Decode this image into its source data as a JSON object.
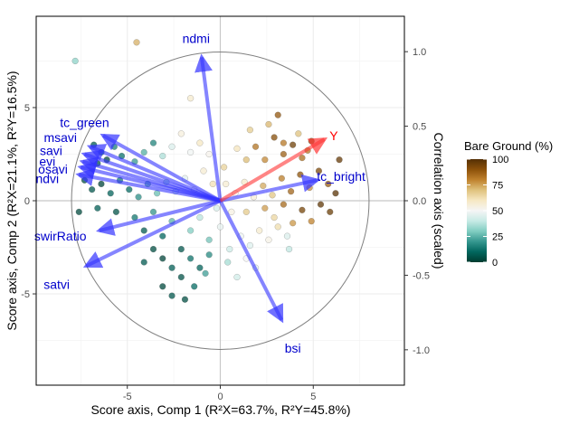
{
  "chart_data": {
    "type": "scatter",
    "subtype": "PLS biplot (scores with loading arrows and correlation circle)",
    "xlabel": "Score axis, Comp 1 (R²X=63.7%, R²Y=45.8%)",
    "ylabel": "Score axis, Comp 2 (R²X=21.1%, R²Y=16.5%)",
    "y2label": "Correlation axis (scaled)",
    "xlim": [
      -9.9,
      9.9
    ],
    "ylim": [
      -9.9,
      9.9
    ],
    "x_ticks": [
      -5,
      0,
      5
    ],
    "y_ticks": [
      -5,
      0,
      5
    ],
    "x_tick_labels": [
      "-5",
      "0",
      "5"
    ],
    "y_tick_labels": [
      "-5",
      "0",
      "5"
    ],
    "y2_ticks": [
      -1.0,
      -0.5,
      0.0,
      0.5,
      1.0
    ],
    "y2_tick_labels": [
      "-1.0",
      "-0.5",
      "0.0",
      "0.5",
      "1.0"
    ],
    "y2_scale": 8.0,
    "circle_radius": 8.0,
    "grid": true,
    "legend": {
      "title": "Bare Ground (%)",
      "position": "right",
      "ticks": [
        0,
        25,
        50,
        75,
        100
      ],
      "tick_labels": [
        "0",
        "25",
        "50",
        "75",
        "100"
      ],
      "colormap": [
        "#003c30",
        "#01665e",
        "#35978f",
        "#80cdc1",
        "#c7eae5",
        "#f5f5f5",
        "#f6e8c3",
        "#dfc27d",
        "#bf812d",
        "#8c510a",
        "#543005"
      ]
    },
    "arrow_color_x": "#3333ff",
    "arrow_color_y": "#ff3333",
    "loadings": [
      {
        "label": "ndmi",
        "x": -1.0,
        "y": 7.7,
        "label_x": -1.3,
        "label_y": 8.7,
        "type": "x"
      },
      {
        "label": "tc_green",
        "x": -6.3,
        "y": 3.5,
        "label_x": -7.3,
        "label_y": 4.2,
        "type": "x"
      },
      {
        "label": "msavi",
        "x": -7.0,
        "y": 2.9,
        "label_x": -8.6,
        "label_y": 3.4,
        "type": "x"
      },
      {
        "label": "savi",
        "x": -7.3,
        "y": 2.5,
        "label_x": -9.1,
        "label_y": 2.7,
        "type": "x"
      },
      {
        "label": "evi",
        "x": -7.4,
        "y": 2.1,
        "label_x": -9.3,
        "label_y": 2.1,
        "type": "x"
      },
      {
        "label": "osavi",
        "x": -7.5,
        "y": 1.8,
        "label_x": -9.0,
        "label_y": 1.7,
        "type": "x"
      },
      {
        "label": "ndvi",
        "x": -7.6,
        "y": 1.4,
        "label_x": -9.3,
        "label_y": 1.2,
        "type": "x"
      },
      {
        "label": "swirRatio",
        "x": -6.5,
        "y": -1.6,
        "label_x": -8.6,
        "label_y": -1.9,
        "type": "x"
      },
      {
        "label": "satvi",
        "x": -7.2,
        "y": -3.5,
        "label_x": -8.8,
        "label_y": -4.5,
        "type": "x"
      },
      {
        "label": "bsi",
        "x": 3.3,
        "y": -6.4,
        "label_x": 3.9,
        "label_y": -7.9,
        "type": "x"
      },
      {
        "label": "tc_bright",
        "x": 5.2,
        "y": 1.1,
        "label_x": 6.5,
        "label_y": 1.3,
        "type": "x"
      },
      {
        "label": "Y",
        "x": 5.6,
        "y": 3.3,
        "label_x": 6.1,
        "label_y": 3.5,
        "type": "y"
      }
    ],
    "points": [
      {
        "x": -7.8,
        "y": 7.5,
        "v": 32
      },
      {
        "x": -4.5,
        "y": 8.5,
        "v": 73
      },
      {
        "x": -1.6,
        "y": 5.5,
        "v": 58
      },
      {
        "x": 3.4,
        "y": 3.1,
        "v": 82
      },
      {
        "x": 4.2,
        "y": 3.6,
        "v": 70
      },
      {
        "x": -6.8,
        "y": 3.0,
        "v": 7
      },
      {
        "x": -6.4,
        "y": 2.6,
        "v": 10
      },
      {
        "x": -6.1,
        "y": 2.2,
        "v": 3
      },
      {
        "x": -6.6,
        "y": 2.0,
        "v": 5
      },
      {
        "x": -5.7,
        "y": 2.9,
        "v": 15
      },
      {
        "x": -5.3,
        "y": 2.4,
        "v": 12
      },
      {
        "x": -4.6,
        "y": 2.1,
        "v": 20
      },
      {
        "x": -4.1,
        "y": 2.6,
        "v": 24
      },
      {
        "x": -3.6,
        "y": 3.1,
        "v": 16
      },
      {
        "x": -3.1,
        "y": 2.4,
        "v": 36
      },
      {
        "x": -2.6,
        "y": 2.9,
        "v": 44
      },
      {
        "x": -2.1,
        "y": 3.6,
        "v": 55
      },
      {
        "x": -1.6,
        "y": 2.6,
        "v": 49
      },
      {
        "x": -1.1,
        "y": 3.1,
        "v": 60
      },
      {
        "x": -0.6,
        "y": 2.5,
        "v": 52
      },
      {
        "x": -7.3,
        "y": 1.1,
        "v": 4
      },
      {
        "x": -6.9,
        "y": 0.6,
        "v": 6
      },
      {
        "x": -6.4,
        "y": 0.9,
        "v": 2
      },
      {
        "x": -5.9,
        "y": 0.4,
        "v": 9
      },
      {
        "x": -5.4,
        "y": 1.1,
        "v": 14
      },
      {
        "x": -4.9,
        "y": 0.6,
        "v": 11
      },
      {
        "x": -4.4,
        "y": 0.2,
        "v": 18
      },
      {
        "x": -3.9,
        "y": 0.9,
        "v": 22
      },
      {
        "x": -3.4,
        "y": 0.4,
        "v": 27
      },
      {
        "x": -2.9,
        "y": 1.0,
        "v": 33
      },
      {
        "x": -2.4,
        "y": 0.5,
        "v": 40
      },
      {
        "x": -1.9,
        "y": 1.2,
        "v": 46
      },
      {
        "x": -1.4,
        "y": 0.6,
        "v": 51
      },
      {
        "x": -0.9,
        "y": 1.6,
        "v": 57
      },
      {
        "x": -0.4,
        "y": 0.9,
        "v": 62
      },
      {
        "x": 0.2,
        "y": 1.8,
        "v": 66
      },
      {
        "x": -7.6,
        "y": -0.6,
        "v": 3
      },
      {
        "x": -6.6,
        "y": -0.4,
        "v": 8
      },
      {
        "x": -5.6,
        "y": -0.6,
        "v": 5
      },
      {
        "x": -4.6,
        "y": -0.9,
        "v": 13
      },
      {
        "x": -4.1,
        "y": -1.6,
        "v": 7
      },
      {
        "x": -3.6,
        "y": -0.6,
        "v": 19
      },
      {
        "x": -3.1,
        "y": -1.9,
        "v": 10
      },
      {
        "x": -2.6,
        "y": -1.1,
        "v": 25
      },
      {
        "x": -2.1,
        "y": -2.6,
        "v": 6
      },
      {
        "x": -1.6,
        "y": -1.6,
        "v": 30
      },
      {
        "x": -1.1,
        "y": -0.9,
        "v": 38
      },
      {
        "x": -0.6,
        "y": -2.1,
        "v": 28
      },
      {
        "x": 0.0,
        "y": -1.4,
        "v": 47
      },
      {
        "x": 0.6,
        "y": -0.6,
        "v": 54
      },
      {
        "x": -3.6,
        "y": -2.6,
        "v": 4
      },
      {
        "x": -3.1,
        "y": -3.1,
        "v": 2
      },
      {
        "x": -2.6,
        "y": -3.6,
        "v": 8
      },
      {
        "x": -2.1,
        "y": -4.1,
        "v": 5
      },
      {
        "x": -1.6,
        "y": -3.1,
        "v": 12
      },
      {
        "x": -1.1,
        "y": -3.6,
        "v": 9
      },
      {
        "x": -0.6,
        "y": -2.9,
        "v": 17
      },
      {
        "x": -3.1,
        "y": -4.6,
        "v": 3
      },
      {
        "x": -2.6,
        "y": -5.1,
        "v": 6
      },
      {
        "x": -1.9,
        "y": -5.3,
        "v": 4
      },
      {
        "x": -4.1,
        "y": -3.3,
        "v": 7
      },
      {
        "x": -1.4,
        "y": -4.6,
        "v": 11
      },
      {
        "x": 0.5,
        "y": -2.6,
        "v": 41
      },
      {
        "x": 1.1,
        "y": -1.9,
        "v": 48
      },
      {
        "x": 1.6,
        "y": -2.4,
        "v": 45
      },
      {
        "x": 2.1,
        "y": -1.6,
        "v": 58
      },
      {
        "x": 2.6,
        "y": -2.1,
        "v": 53
      },
      {
        "x": 3.1,
        "y": -1.4,
        "v": 63
      },
      {
        "x": 3.6,
        "y": -1.9,
        "v": 44
      },
      {
        "x": 1.4,
        "y": -3.1,
        "v": 50
      },
      {
        "x": 0.9,
        "y": -4.1,
        "v": 42
      },
      {
        "x": 1.9,
        "y": -3.6,
        "v": 46
      },
      {
        "x": 0.8,
        "y": 0.4,
        "v": 52
      },
      {
        "x": 1.3,
        "y": 1.0,
        "v": 59
      },
      {
        "x": 1.8,
        "y": 0.2,
        "v": 56
      },
      {
        "x": 2.3,
        "y": 0.8,
        "v": 74
      },
      {
        "x": 2.8,
        "y": 0.3,
        "v": 69
      },
      {
        "x": 3.3,
        "y": 1.2,
        "v": 81
      },
      {
        "x": 3.8,
        "y": 0.5,
        "v": 86
      },
      {
        "x": 4.3,
        "y": 1.4,
        "v": 90
      },
      {
        "x": 4.8,
        "y": 0.7,
        "v": 78
      },
      {
        "x": 5.3,
        "y": 1.6,
        "v": 93
      },
      {
        "x": 5.8,
        "y": 0.9,
        "v": 88
      },
      {
        "x": 6.4,
        "y": 2.2,
        "v": 97
      },
      {
        "x": 1.4,
        "y": 2.2,
        "v": 71
      },
      {
        "x": 1.9,
        "y": 2.9,
        "v": 83
      },
      {
        "x": 2.4,
        "y": 2.2,
        "v": 79
      },
      {
        "x": 2.9,
        "y": 3.4,
        "v": 91
      },
      {
        "x": 3.4,
        "y": 2.5,
        "v": 87
      },
      {
        "x": 3.9,
        "y": 3.0,
        "v": 95
      },
      {
        "x": 4.4,
        "y": 2.3,
        "v": 84
      },
      {
        "x": 4.9,
        "y": 3.2,
        "v": 92
      },
      {
        "x": 2.6,
        "y": 4.1,
        "v": 72
      },
      {
        "x": 3.1,
        "y": 4.6,
        "v": 89
      },
      {
        "x": 1.6,
        "y": 3.8,
        "v": 67
      },
      {
        "x": 0.9,
        "y": 2.8,
        "v": 61
      },
      {
        "x": 1.4,
        "y": -0.6,
        "v": 68
      },
      {
        "x": 2.4,
        "y": -0.4,
        "v": 76
      },
      {
        "x": 3.4,
        "y": -0.2,
        "v": 85
      },
      {
        "x": 4.4,
        "y": -0.5,
        "v": 94
      },
      {
        "x": 5.4,
        "y": -0.2,
        "v": 98
      },
      {
        "x": 4.9,
        "y": -1.1,
        "v": 80
      },
      {
        "x": 3.9,
        "y": -1.2,
        "v": 77
      },
      {
        "x": 2.9,
        "y": -0.9,
        "v": 65
      },
      {
        "x": 5.9,
        "y": -0.6,
        "v": 96
      },
      {
        "x": 6.2,
        "y": 0.4,
        "v": 99
      },
      {
        "x": 0.4,
        "y": -3.3,
        "v": 35
      },
      {
        "x": -0.2,
        "y": -0.4,
        "v": 43
      },
      {
        "x": 0.3,
        "y": 0.9,
        "v": 57
      },
      {
        "x": -0.8,
        "y": -3.9,
        "v": 21
      },
      {
        "x": 3.7,
        "y": -2.6,
        "v": 39
      },
      {
        "x": 4.7,
        "y": 2.7,
        "v": 82
      }
    ]
  }
}
